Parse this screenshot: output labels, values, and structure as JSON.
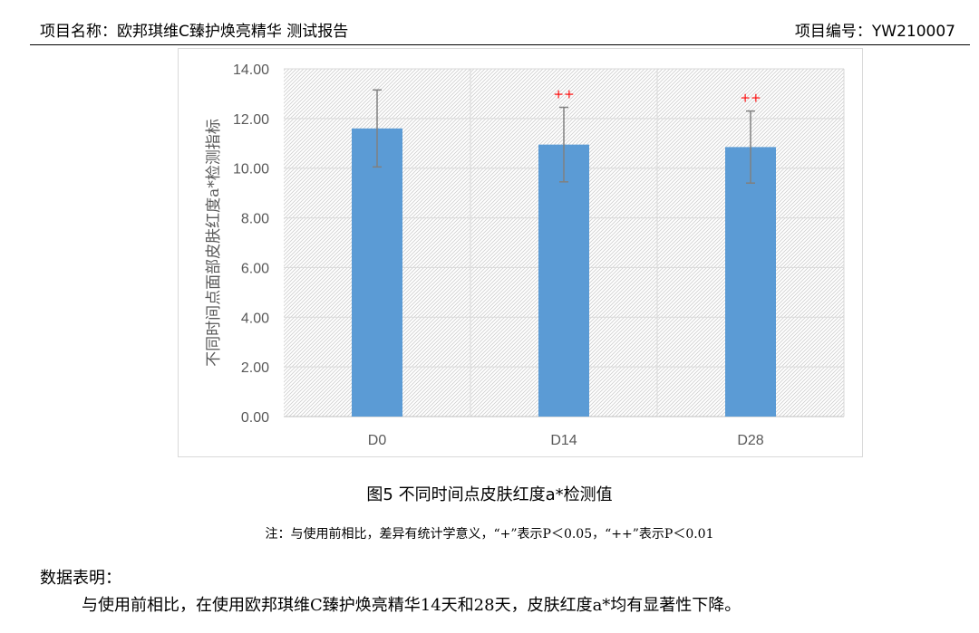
{
  "header": {
    "left": "项目名称：欧邦琪维C臻护焕亮精华 测试报告",
    "right": "项目编号：YW210007"
  },
  "chart_data": {
    "type": "bar",
    "title": "",
    "xlabel": "",
    "ylabel": "不同时间点面部皮肤红度a*检测指标",
    "categories": [
      "D0",
      "D14",
      "D28"
    ],
    "values": [
      11.6,
      10.95,
      10.85
    ],
    "error": [
      1.55,
      1.5,
      1.45
    ],
    "significance": [
      "",
      "++",
      "++"
    ],
    "ylim": [
      0,
      14
    ],
    "yticks": [
      "0.00",
      "2.00",
      "4.00",
      "6.00",
      "8.00",
      "10.00",
      "12.00",
      "14.00"
    ],
    "grid": true,
    "colors": {
      "bar": "#5b9bd5",
      "error": "#808080",
      "significance": "#ff0000",
      "grid": "#d9d9d9",
      "axis": "#595959"
    }
  },
  "caption": "图5 不同时间点皮肤红度a*检测值",
  "note": "注：与使用前相比，差异有统计学意义，“+”表示P＜0.05，“++”表示P＜0.01",
  "section": {
    "title": "数据表明：",
    "body": "与使用前相比，在使用欧邦琪维C臻护焕亮精华14天和28天，皮肤红度a*均有显著性下降。"
  }
}
